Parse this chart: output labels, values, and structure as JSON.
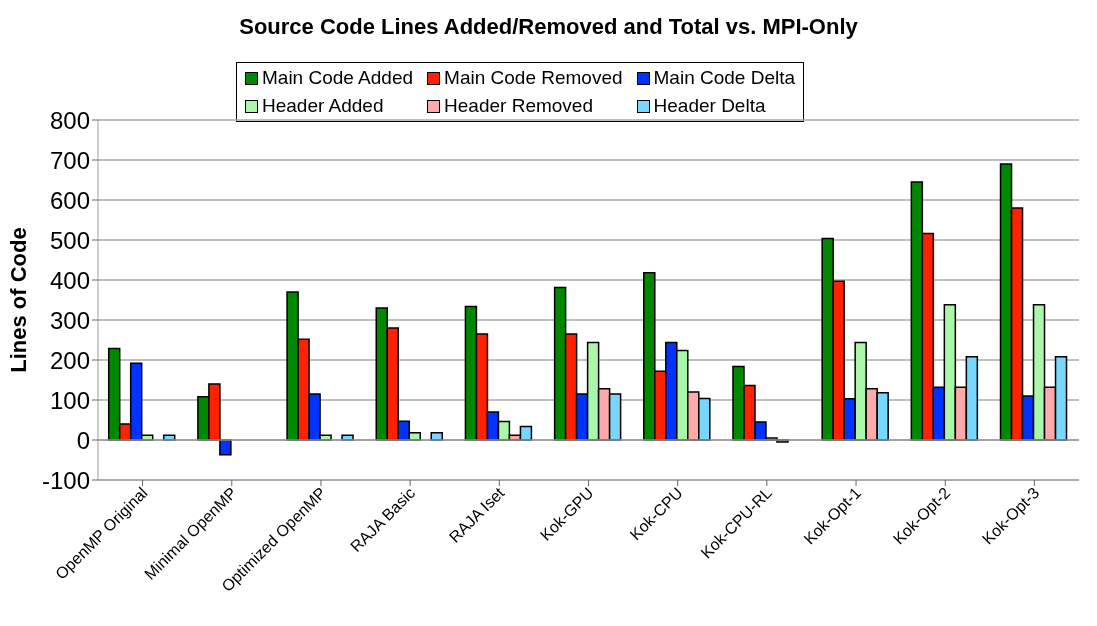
{
  "chart_data": {
    "type": "bar",
    "title": "Source Code Lines Added/Removed and Total vs. MPI-Only",
    "ylabel": "Lines of Code",
    "categories": [
      "OpenMP Original",
      "Minimal OpenMP",
      "Optimized OpenMP",
      "RAJA Basic",
      "RAJA Iset",
      "Kok-GPU",
      "Kok-CPU",
      "Kok-CPU-RL",
      "Kok-Opt-1",
      "Kok-Opt-2",
      "Kok-Opt-3"
    ],
    "series": [
      {
        "name": "Main Code Added",
        "color": "#008800",
        "values": [
          229,
          108,
          370,
          330,
          334,
          381,
          418,
          184,
          504,
          645,
          690
        ]
      },
      {
        "name": "Main Code Removed",
        "color": "#ff2200",
        "values": [
          40,
          140,
          252,
          280,
          265,
          265,
          172,
          136,
          397,
          516,
          580
        ]
      },
      {
        "name": "Main Code Delta",
        "color": "#0033ff",
        "values": [
          192,
          -37,
          115,
          47,
          70,
          115,
          244,
          45,
          103,
          132,
          110
        ]
      },
      {
        "name": "Header Added",
        "color": "#aaf7aa",
        "values": [
          12,
          0,
          12,
          18,
          46,
          244,
          224,
          5,
          244,
          338,
          338
        ]
      },
      {
        "name": "Header Removed",
        "color": "#ffaaaa",
        "values": [
          0,
          0,
          0,
          0,
          12,
          128,
          120,
          -5,
          128,
          132,
          132
        ]
      },
      {
        "name": "Header Delta",
        "color": "#77d7ff",
        "values": [
          12,
          0,
          12,
          18,
          34,
          115,
          104,
          0,
          118,
          208,
          208
        ]
      }
    ],
    "ylim": [
      -100,
      800
    ],
    "yticks": [
      -100,
      0,
      100,
      200,
      300,
      400,
      500,
      600,
      700,
      800
    ],
    "grid": "y",
    "legend": "top"
  }
}
